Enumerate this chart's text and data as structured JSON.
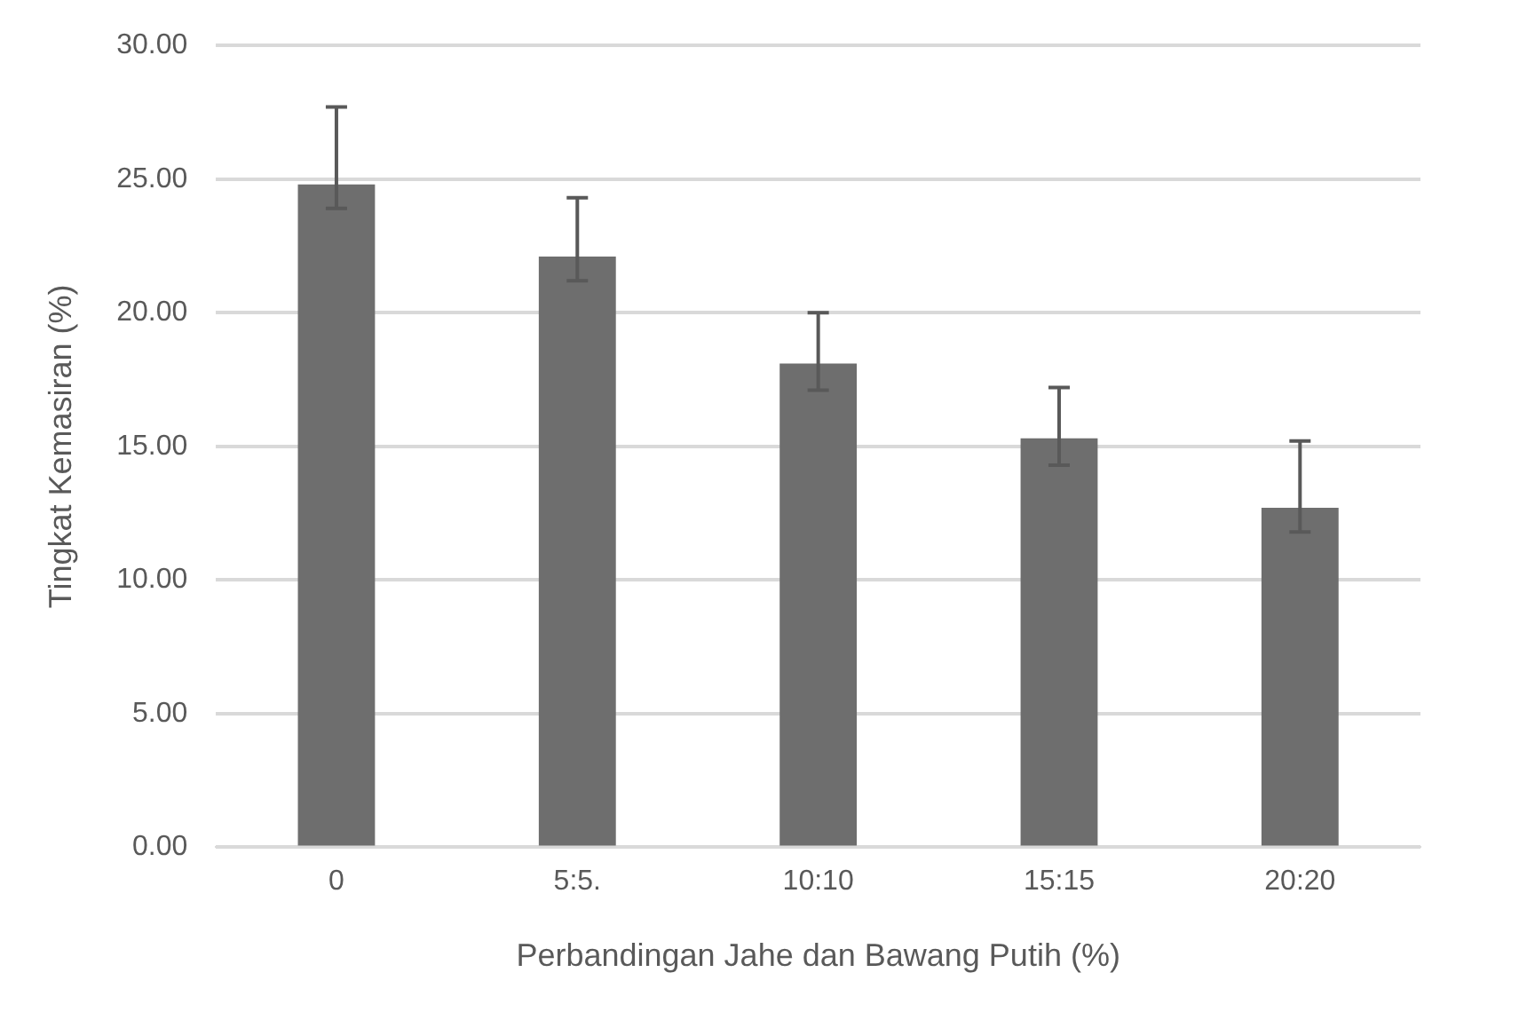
{
  "chart_data": {
    "type": "bar",
    "xlabel": "Perbandingan Jahe dan Bawang Putih (%)",
    "ylabel": "Tingkat Kemasiran (%)",
    "categories": [
      "0",
      "5:5.",
      "10:10",
      "15:15",
      "20:20"
    ],
    "values": [
      24.8,
      22.1,
      18.1,
      15.3,
      12.7
    ],
    "errors": [
      [
        23.9,
        27.7
      ],
      [
        21.2,
        24.3
      ],
      [
        17.1,
        20.0
      ],
      [
        14.3,
        17.2
      ],
      [
        11.8,
        15.2
      ]
    ],
    "color": "#6e6e6e",
    "ylim": [
      0,
      30
    ],
    "yticks": [
      {
        "value": 0,
        "label": "0.00"
      },
      {
        "value": 5,
        "label": "5.00"
      },
      {
        "value": 10,
        "label": "10.00"
      },
      {
        "value": 15,
        "label": "15.00"
      },
      {
        "value": 20,
        "label": "20.00"
      },
      {
        "value": 25,
        "label": "25.00"
      },
      {
        "value": 30,
        "label": "30.00"
      }
    ],
    "grid": "y",
    "legend": false
  }
}
